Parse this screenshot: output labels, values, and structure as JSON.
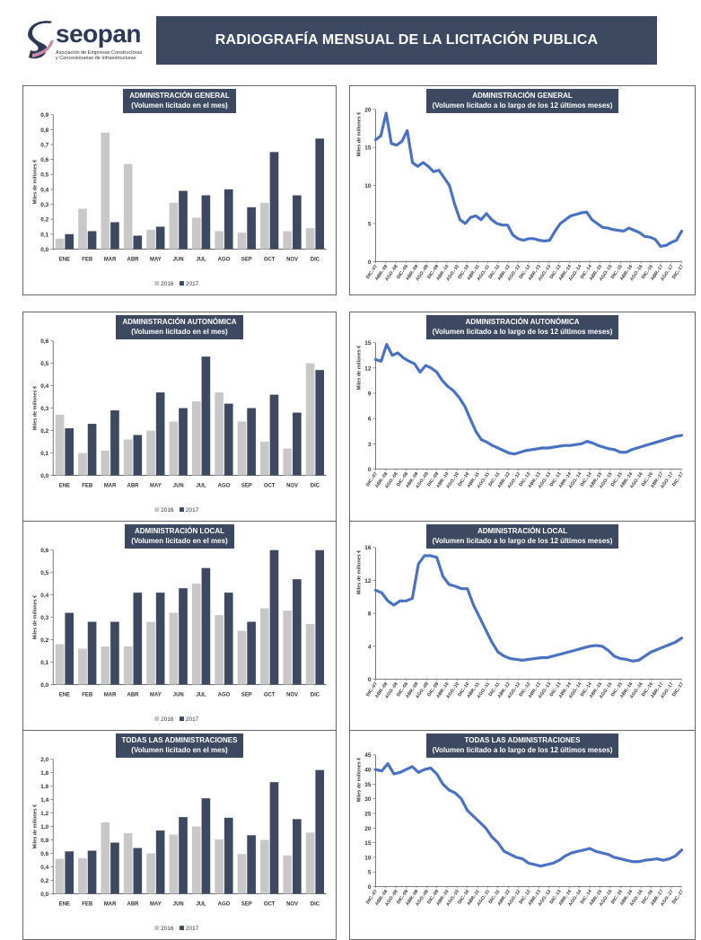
{
  "header": {
    "title": "RADIOGRAFÍA MENSUAL DE LA LICITACIÓN PUBLICA"
  },
  "logo": {
    "name": "seopan",
    "line1": "Asociación de Empresas Constructoras",
    "line2": "y Concesionarias de Infraestructuras"
  },
  "colors": {
    "banner": "#3d4961",
    "bar2016": "#c8c8c8",
    "bar2017": "#3d4961",
    "line": "#4a72c2"
  },
  "months": [
    "ENE",
    "FEB",
    "MAR",
    "ABR",
    "MAY",
    "JUN",
    "JUL",
    "AGO",
    "SEP",
    "OCT",
    "NOV",
    "DIC"
  ],
  "line_ticks": [
    "DIC.-07",
    "ABR.-08",
    "AGO.-08",
    "DIC.-08",
    "ABR.-09",
    "AGO.-09",
    "DIC.-09",
    "ABR.-10",
    "AGO.-10",
    "DIC.-10",
    "ABR.-11",
    "AGO.-11",
    "DIC.-11",
    "ABR.-12",
    "AGO.-12",
    "DIC.-12",
    "ABR.-13",
    "AGO.-13",
    "DIC.-13",
    "ABR.-14",
    "AGO.-14",
    "DIC.-14",
    "ABR.-15",
    "AGO.-15",
    "DIC.-15",
    "ABR.-16",
    "AGO.-16",
    "DIC.-16",
    "ABR.-17",
    "AGO.-17",
    "DIC.-17"
  ],
  "chart_data": [
    {
      "type": "bar",
      "title": "ADMINISTRACIÓN GENERAL",
      "subtitle": "(Volumen licitado en el mes)",
      "ylabel": "Miles de millones €",
      "ylim": [
        0,
        0.9
      ],
      "yticks": [
        "0,0",
        "0,1",
        "0,2",
        "0,3",
        "0,4",
        "0,5",
        "0,6",
        "0,7",
        "0,8",
        "0,9"
      ],
      "series": [
        {
          "name": "2016",
          "values": [
            0.07,
            0.27,
            0.78,
            0.57,
            0.13,
            0.31,
            0.21,
            0.12,
            0.11,
            0.31,
            0.12,
            0.14
          ]
        },
        {
          "name": "2017",
          "values": [
            0.1,
            0.12,
            0.18,
            0.09,
            0.15,
            0.39,
            0.36,
            0.4,
            0.28,
            0.65,
            0.36,
            0.74
          ]
        }
      ],
      "legend": "bottom"
    },
    {
      "type": "line",
      "title": "ADMINISTRACIÓN GENERAL",
      "subtitle": "(Volumen licitado a lo largo de los 12 últimos meses)",
      "ylabel": "Miles de millones €",
      "ylim": [
        0,
        20
      ],
      "yticks": [
        "0",
        "5",
        "10",
        "15",
        "20"
      ],
      "values": [
        16,
        16.5,
        19.5,
        15.5,
        15.3,
        15.8,
        17.2,
        13,
        12.5,
        13,
        12.5,
        11.8,
        12,
        11,
        10,
        7.5,
        5.5,
        5,
        5.8,
        6,
        5.5,
        6.3,
        5.5,
        5,
        4.8,
        4.8,
        3.5,
        3,
        2.8,
        3,
        3,
        2.8,
        2.7,
        2.8,
        4,
        5,
        5.5,
        6,
        6.2,
        6.4,
        6.5,
        5.5,
        5,
        4.5,
        4.4,
        4.2,
        4.1,
        4,
        4.4,
        4.1,
        3.8,
        3.3,
        3.2,
        2.9,
        2,
        2.1,
        2.5,
        2.8,
        4
      ]
    },
    {
      "type": "bar",
      "title": "ADMINISTRACIÓN AUTONÓMICA",
      "subtitle": "(Volumen licitado en el mes)",
      "ylabel": "Miles de millones €",
      "ylim": [
        0,
        0.6
      ],
      "yticks": [
        "0,0",
        "0,1",
        "0,2",
        "0,3",
        "0,4",
        "0,5",
        "0,6"
      ],
      "series": [
        {
          "name": "2016",
          "values": [
            0.27,
            0.1,
            0.11,
            0.16,
            0.2,
            0.24,
            0.33,
            0.37,
            0.24,
            0.15,
            0.12,
            0.5
          ]
        },
        {
          "name": "2017",
          "values": [
            0.21,
            0.23,
            0.29,
            0.18,
            0.37,
            0.3,
            0.53,
            0.32,
            0.3,
            0.36,
            0.28,
            0.47
          ]
        }
      ],
      "legend": "bottom"
    },
    {
      "type": "line",
      "title": "ADMINISTRACIÓN AUTONÓMICA",
      "subtitle": "(Volumen licitado a lo largo de los 12 últimos meses)",
      "ylabel": "Miles de millones €",
      "ylim": [
        0,
        15
      ],
      "yticks": [
        "0",
        "3",
        "6",
        "9",
        "12",
        "15"
      ],
      "values": [
        13,
        12.8,
        14.8,
        13.5,
        13.8,
        13.2,
        12.8,
        12.5,
        11.5,
        12.3,
        12,
        11.5,
        10.5,
        9.8,
        9.3,
        8.5,
        7.5,
        6,
        4.5,
        3.5,
        3.2,
        2.8,
        2.5,
        2.2,
        1.9,
        1.8,
        2,
        2.2,
        2.3,
        2.4,
        2.5,
        2.5,
        2.6,
        2.7,
        2.8,
        2.8,
        2.9,
        3,
        3.3,
        3.1,
        2.8,
        2.6,
        2.4,
        2.3,
        2,
        2,
        2.3,
        2.5,
        2.7,
        2.9,
        3.1,
        3.3,
        3.5,
        3.7,
        3.9,
        4
      ]
    },
    {
      "type": "bar",
      "title": "ADMINISTRACIÓN LOCAL",
      "subtitle": "(Volumen licitado en el mes)",
      "ylabel": "Miles de millones €",
      "ylim": [
        0,
        0.6
      ],
      "yticks": [
        "0,0",
        "0,1",
        "0,2",
        "0,3",
        "0,4",
        "0,5",
        "0,6"
      ],
      "series": [
        {
          "name": "2016",
          "values": [
            0.18,
            0.16,
            0.17,
            0.17,
            0.28,
            0.32,
            0.45,
            0.31,
            0.24,
            0.34,
            0.33,
            0.27
          ]
        },
        {
          "name": "2017",
          "values": [
            0.32,
            0.28,
            0.28,
            0.41,
            0.41,
            0.43,
            0.52,
            0.41,
            0.28,
            0.6,
            0.47,
            0.6
          ]
        }
      ],
      "legend": "bottom"
    },
    {
      "type": "line",
      "title": "ADMINISTRACIÓN LOCAL",
      "subtitle": "(Volumen licitado a lo largo de los 12 últimos meses)",
      "ylabel": "Miles de millones €",
      "ylim": [
        0,
        16
      ],
      "yticks": [
        "0",
        "4",
        "8",
        "12",
        "16"
      ],
      "values": [
        10.8,
        10.5,
        9.5,
        9,
        9.5,
        9.5,
        9.8,
        14,
        15,
        15,
        14.8,
        12.5,
        11.5,
        11.3,
        11,
        11,
        9,
        7.5,
        6,
        4.5,
        3.3,
        2.8,
        2.5,
        2.4,
        2.3,
        2.4,
        2.5,
        2.6,
        2.6,
        2.8,
        3,
        3.2,
        3.4,
        3.6,
        3.8,
        4,
        4.1,
        4,
        3.5,
        2.8,
        2.5,
        2.4,
        2.2,
        2.3,
        2.8,
        3.3,
        3.6,
        3.9,
        4.2,
        4.5,
        5
      ]
    },
    {
      "type": "bar",
      "title": "TODAS  LAS ADMINISTRACIONES",
      "subtitle": "(Volumen licitado en el mes)",
      "ylabel": "Miles de millones €",
      "ylim": [
        0,
        2.0
      ],
      "yticks": [
        "0,0",
        "0,2",
        "0,4",
        "0,6",
        "0,8",
        "1,0",
        "1,2",
        "1,4",
        "1,6",
        "1,8",
        "2,0"
      ],
      "series": [
        {
          "name": "2016",
          "values": [
            0.52,
            0.53,
            1.06,
            0.9,
            0.6,
            0.88,
            1.0,
            0.81,
            0.59,
            0.8,
            0.57,
            0.91
          ]
        },
        {
          "name": "2017",
          "values": [
            0.63,
            0.64,
            0.76,
            0.68,
            0.94,
            1.14,
            1.42,
            1.13,
            0.87,
            1.66,
            1.11,
            1.84
          ]
        }
      ],
      "legend": "bottom"
    },
    {
      "type": "line",
      "title": "TODAS LAS ADMINISTRACIONES",
      "subtitle": "(Volumen licitado a lo largo de los 12 últimos meses)",
      "ylabel": "Miles de millones €",
      "ylim": [
        0,
        45
      ],
      "yticks": [
        "0",
        "5",
        "10",
        "15",
        "20",
        "25",
        "30",
        "35",
        "40",
        "45"
      ],
      "values": [
        40,
        39.5,
        42,
        38.5,
        39,
        40,
        41,
        39,
        40,
        40.5,
        38.5,
        35,
        33,
        32,
        30,
        26,
        24,
        22,
        20,
        17,
        15,
        12,
        11,
        10,
        9.5,
        8,
        7.5,
        7,
        7.5,
        8,
        9,
        10.5,
        11.5,
        12,
        12.5,
        13,
        12,
        11.5,
        11,
        10,
        9.5,
        9,
        8.5,
        8.5,
        9,
        9.2,
        9.5,
        9,
        9.5,
        10.5,
        12.5
      ]
    }
  ]
}
